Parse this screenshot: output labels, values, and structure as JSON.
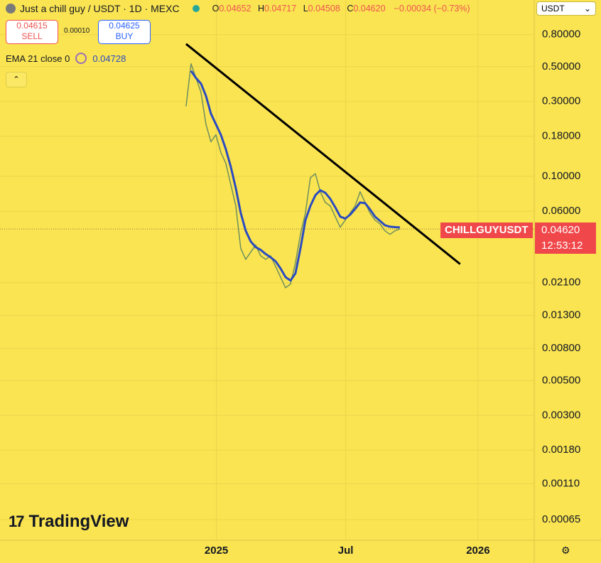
{
  "header": {
    "symbol": "Just a chill guy / USDT · 1D · MEXC",
    "ohlc": [
      {
        "key": "O",
        "value": "0.04652"
      },
      {
        "key": "H",
        "value": "0.04717"
      },
      {
        "key": "L",
        "value": "0.04508"
      },
      {
        "key": "C",
        "value": "0.04620"
      }
    ],
    "change": "−0.00034 (−0.73%)"
  },
  "trade": {
    "sell": {
      "price": "0.04615",
      "label": "SELL"
    },
    "spread": "0.00010",
    "buy": {
      "price": "0.04625",
      "label": "BUY"
    }
  },
  "indicator": {
    "name": "EMA 21 close 0",
    "value": "0.04728"
  },
  "currency": "USDT",
  "price_label": {
    "symbol": "CHILLGUYUSDT",
    "countdown": "12:53:12"
  },
  "logo": "TradingView",
  "chart_data": {
    "type": "line",
    "log_scale": true,
    "grid": true,
    "ylim": [
      0.00048,
      1.33
    ],
    "yticks": [
      {
        "value": 0.8,
        "label": "0.80000"
      },
      {
        "value": 0.5,
        "label": "0.50000"
      },
      {
        "value": 0.3,
        "label": "0.30000"
      },
      {
        "value": 0.18,
        "label": "0.18000"
      },
      {
        "value": 0.1,
        "label": "0.10000"
      },
      {
        "value": 0.06,
        "label": "0.06000"
      },
      {
        "value": 0.021,
        "label": "0.02100"
      },
      {
        "value": 0.013,
        "label": "0.01300"
      },
      {
        "value": 0.008,
        "label": "0.00800"
      },
      {
        "value": 0.005,
        "label": "0.00500"
      },
      {
        "value": 0.003,
        "label": "0.00300"
      },
      {
        "value": 0.0018,
        "label": "0.00180"
      },
      {
        "value": 0.0011,
        "label": "0.00110"
      },
      {
        "value": 0.00065,
        "label": "0.00065"
      }
    ],
    "xlim": [
      -37.4,
      70
    ],
    "xticks": [
      {
        "value": 6.1,
        "label": "2025"
      },
      {
        "value": 32.1,
        "label": "Jul"
      },
      {
        "value": 58.7,
        "label": "2026"
      }
    ],
    "last_price": {
      "value": 0.0462,
      "label": "0.04620"
    },
    "series": [
      {
        "color": "#6f8f5e",
        "values": [
          0.279,
          0.522,
          0.423,
          0.344,
          0.215,
          0.166,
          0.184,
          0.142,
          0.121,
          0.0886,
          0.0648,
          0.0347,
          0.0296,
          0.0329,
          0.0365,
          0.0312,
          0.0296,
          0.0312,
          0.0267,
          0.0228,
          0.0195,
          0.0206,
          0.0281,
          0.0427,
          0.0584,
          0.098,
          0.104,
          0.0798,
          0.0682,
          0.0648,
          0.0554,
          0.0474,
          0.0526,
          0.0584,
          0.0648,
          0.0798,
          0.0682,
          0.0584,
          0.0526,
          0.0499,
          0.045,
          0.0427,
          0.045,
          0.0462
        ]
      },
      {
        "color": "#2a4bc0",
        "values": [
          null,
          0.47,
          0.423,
          0.39,
          0.326,
          0.251,
          0.215,
          0.184,
          0.149,
          0.115,
          0.0842,
          0.0584,
          0.045,
          0.0385,
          0.0354,
          0.034,
          0.032,
          0.0305,
          0.0288,
          0.0259,
          0.0228,
          0.0217,
          0.0241,
          0.0347,
          0.0526,
          0.0648,
          0.0758,
          0.0815,
          0.0786,
          0.0719,
          0.0635,
          0.0554,
          0.0538,
          0.057,
          0.062,
          0.0682,
          0.0675,
          0.0615,
          0.0554,
          0.052,
          0.0488,
          0.0478,
          0.0475,
          0.04728
        ]
      }
    ],
    "trendline": {
      "color": "#000000",
      "x": [
        0,
        55.1
      ],
      "values": [
        0.698,
        0.0276
      ]
    }
  }
}
